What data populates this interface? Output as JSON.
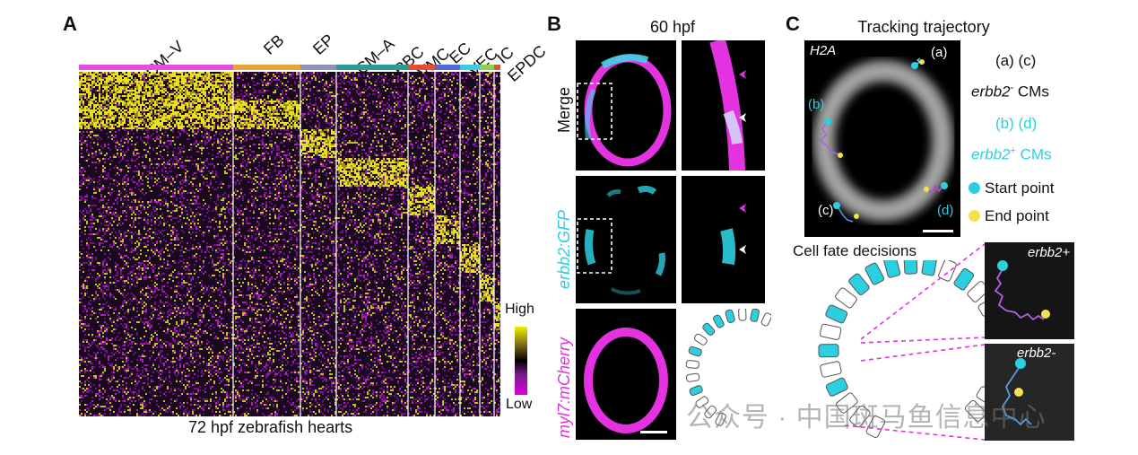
{
  "panel_a": {
    "letter": "A",
    "clusters": [
      "CM–V",
      "FB",
      "EP",
      "CM–A",
      "RBC",
      "VMC",
      "EC",
      "VEC",
      "IC",
      "EPDC"
    ],
    "cluster_colors": [
      "#e34de3",
      "#e8a23c",
      "#8b95b5",
      "#2a9d8f",
      "#e64b35",
      "#4e6ad8",
      "#36cfe0",
      "#8bd14a",
      "#d9533b",
      "#a35a3b"
    ],
    "legend_high": "High",
    "legend_low": "Low",
    "caption": "72 hpf zebrafish hearts"
  },
  "panel_b": {
    "letter": "B",
    "title": "60 hpf",
    "row_labels": [
      "Merge",
      "erbb2:GFP",
      "myl7:mCherry"
    ],
    "row_colors": [
      "#111111",
      "#2ccfe0",
      "#e432e0"
    ]
  },
  "panel_c": {
    "letter": "C",
    "title": "Tracking trajectory",
    "image_label": "H2A",
    "markers": [
      "(a)",
      "(b)",
      "(c)",
      "(d)"
    ],
    "legend": {
      "neg_ids": "(a) (c)",
      "neg_gene": "erbb2",
      "neg_sup": "-",
      "neg_suffix": " CMs",
      "pos_ids": "(b) (d)",
      "pos_gene": "erbb2",
      "pos_sup": "+",
      "pos_suffix": " CMs",
      "start": "Start point",
      "end": "End point"
    },
    "fate_title": "Cell fate decisions",
    "inset_pos": "erbb2+",
    "inset_neg": "erbb2-"
  },
  "watermark": "公众号 · 中国斑马鱼信息中心"
}
